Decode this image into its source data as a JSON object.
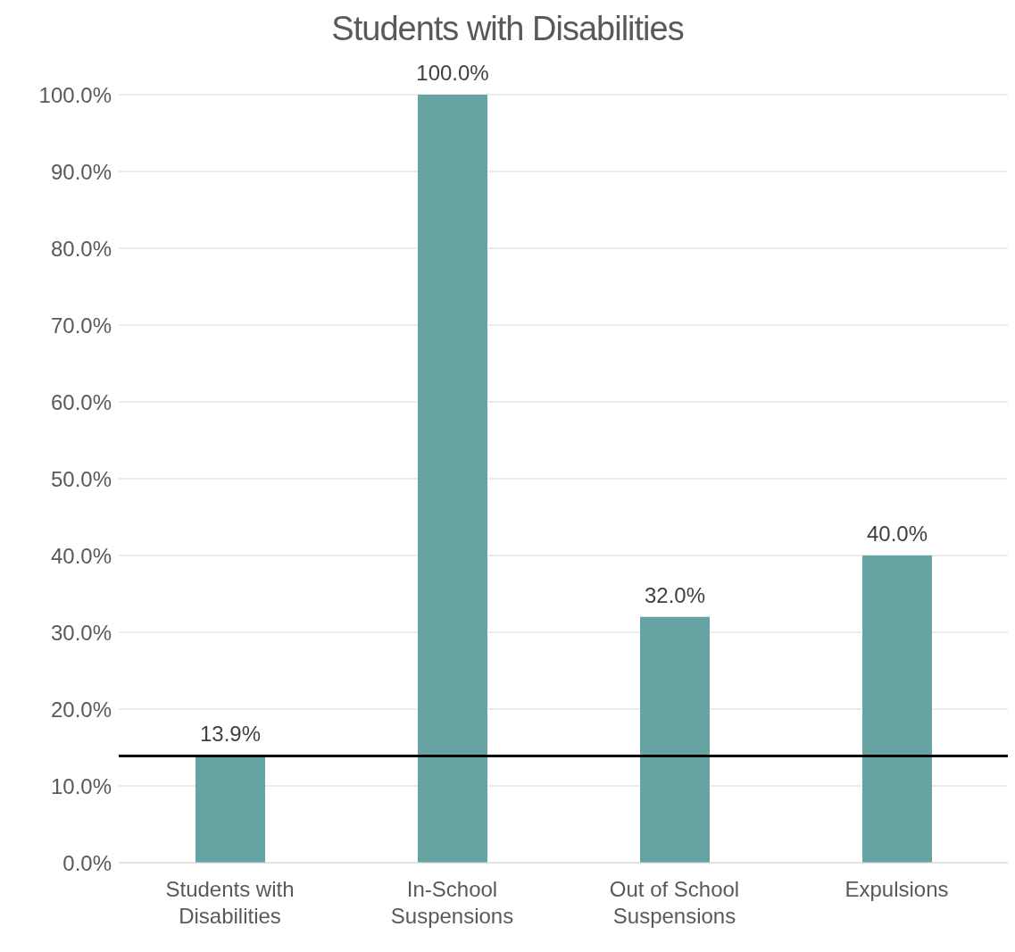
{
  "chart_data": {
    "type": "bar",
    "title": "Students with Disabilities",
    "categories": [
      "Students with\nDisabilities",
      "In-School\nSuspensions",
      "Out of School\nSuspensions",
      "Expulsions"
    ],
    "values": [
      13.9,
      100,
      32,
      40
    ],
    "value_labels": [
      "13.9%",
      "100.0%",
      "32.0%",
      "40.0%"
    ],
    "color": "#66a3a3",
    "ylim": [
      0,
      100
    ],
    "yticks": [
      {
        "value": 0,
        "label": "0.0%"
      },
      {
        "value": 10,
        "label": "10.0%"
      },
      {
        "value": 20,
        "label": "20.0%"
      },
      {
        "value": 30,
        "label": "30.0%"
      },
      {
        "value": 40,
        "label": "40.0%"
      },
      {
        "value": 50,
        "label": "50.0%"
      },
      {
        "value": 60,
        "label": "60.0%"
      },
      {
        "value": 70,
        "label": "70.0%"
      },
      {
        "value": 80,
        "label": "80.0%"
      },
      {
        "value": 90,
        "label": "90.0%"
      },
      {
        "value": 100,
        "label": "100.0%"
      }
    ],
    "grid": "y",
    "ref_lines": [
      {
        "axis": "y",
        "value": 13.9,
        "color": "#000000"
      }
    ]
  }
}
